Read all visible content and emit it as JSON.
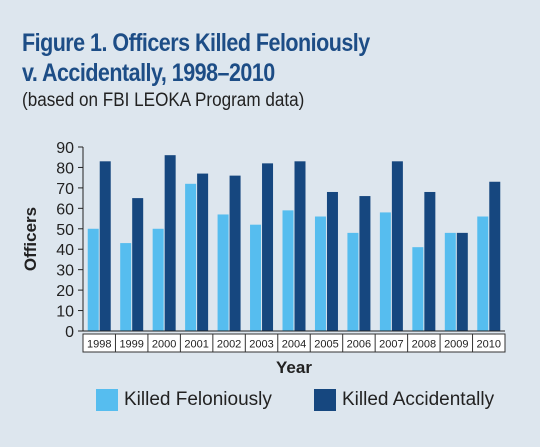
{
  "title_line1": "Figure 1. Officers Killed Feloniously",
  "title_line2": "v. Accidentally, 1998–2010",
  "subtitle": "(based on FBI LEOKA Program data)",
  "colors": {
    "background": "#dde6ee",
    "felonious": "#56bdef",
    "accidental": "#16477f",
    "title": "#1d4d86"
  },
  "chart_data": {
    "type": "bar",
    "categories": [
      "1998",
      "1999",
      "2000",
      "2001",
      "2002",
      "2003",
      "2004",
      "2005",
      "2006",
      "2007",
      "2008",
      "2009",
      "2010"
    ],
    "series": [
      {
        "name": "Killed Feloniously",
        "values": [
          50,
          43,
          50,
          72,
          57,
          52,
          59,
          56,
          48,
          58,
          41,
          48,
          56
        ]
      },
      {
        "name": "Killed Accidentally",
        "values": [
          83,
          65,
          86,
          77,
          76,
          82,
          83,
          68,
          66,
          83,
          68,
          48,
          73
        ]
      }
    ],
    "xlabel": "Year",
    "ylabel": "Officers",
    "ylim": [
      0,
      90
    ],
    "yticks": [
      0,
      10,
      20,
      30,
      40,
      50,
      60,
      70,
      80,
      90
    ],
    "grid": false,
    "legend_position": "bottom"
  }
}
